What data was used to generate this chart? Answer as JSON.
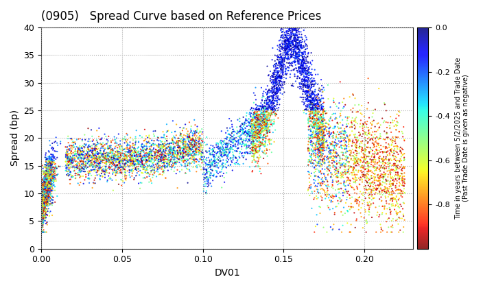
{
  "title": "(0905)   Spread Curve based on Reference Prices",
  "xlabel": "DV01",
  "ylabel": "Spread (bp)",
  "xlim": [
    0.0,
    0.23
  ],
  "ylim": [
    0,
    40
  ],
  "xticks": [
    0.0,
    0.05,
    0.1,
    0.15,
    0.2
  ],
  "yticks": [
    0,
    5,
    10,
    15,
    20,
    25,
    30,
    35,
    40
  ],
  "colorbar_label": "Time in years between 5/2/2025 and Trade Date\n(Past Trade Date is given as negative)",
  "colorbar_vmin": -1.0,
  "colorbar_vmax": 0.0,
  "colorbar_ticks": [
    0.0,
    -0.2,
    -0.4,
    -0.6,
    -0.8
  ],
  "cmap": "jet_r",
  "grid_color": "#aaaaaa",
  "grid_linestyle": "dotted",
  "background_color": "#ffffff",
  "point_size": 2.5,
  "seed": 42
}
